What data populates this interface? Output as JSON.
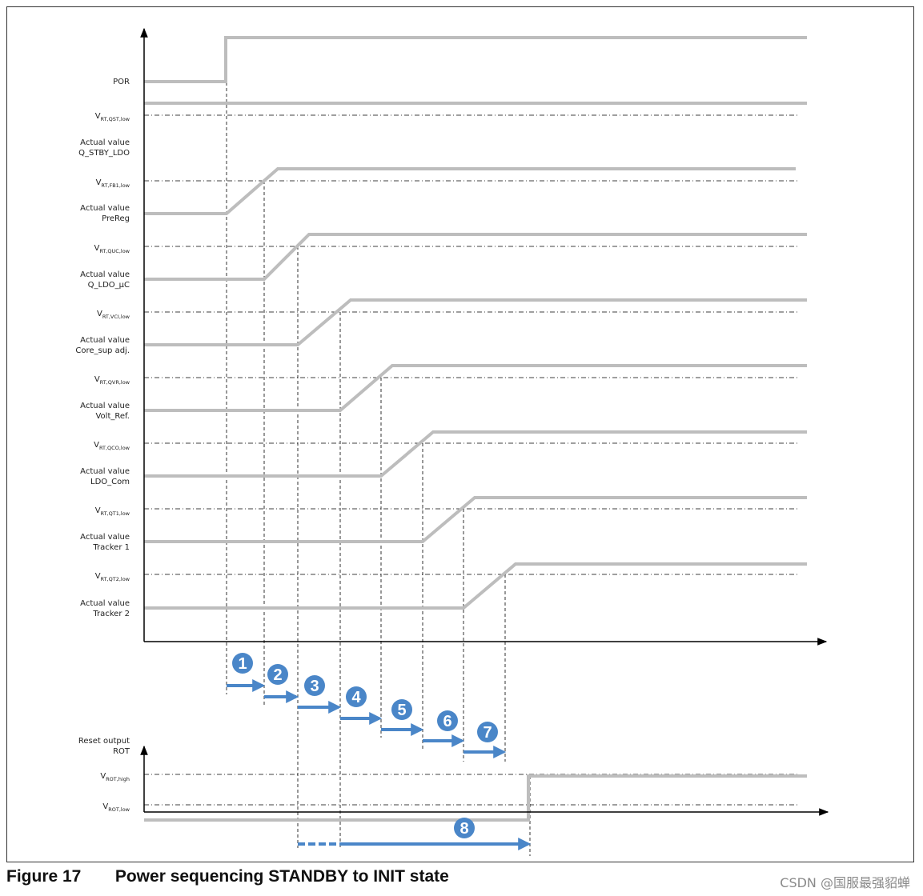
{
  "figure": {
    "number_label": "Figure 17",
    "title": "Power sequencing STANDBY to INIT state"
  },
  "watermark": "CSDN @国服最强貂蝉",
  "signals": [
    {
      "id": "por",
      "lines": [
        "POR"
      ]
    },
    {
      "id": "v-rt-qst",
      "main": "V",
      "sub": "RT,QST,low"
    },
    {
      "id": "q-stby-ldo",
      "lines": [
        "Actual value",
        "Q_STBY_LDO"
      ]
    },
    {
      "id": "v-rt-fb1",
      "main": "V",
      "sub": "RT,FB1,low"
    },
    {
      "id": "prereg",
      "lines": [
        "Actual value",
        "PreReg"
      ]
    },
    {
      "id": "v-rt-quc",
      "main": "V",
      "sub": "RT,QUC,low"
    },
    {
      "id": "q-ldo-uc",
      "lines": [
        "Actual value",
        "Q_LDO_µC"
      ]
    },
    {
      "id": "v-rt-vci",
      "main": "V",
      "sub": "RT,VCI,low"
    },
    {
      "id": "core-sup",
      "lines": [
        "Actual value",
        "Core_sup adj."
      ]
    },
    {
      "id": "v-rt-qvr",
      "main": "V",
      "sub": "RT,QVR,low"
    },
    {
      "id": "volt-ref",
      "lines": [
        "Actual value",
        "Volt_Ref."
      ]
    },
    {
      "id": "v-rt-qco",
      "main": "V",
      "sub": "RT,QCO,low"
    },
    {
      "id": "ldo-com",
      "lines": [
        "Actual value",
        "LDO_Com"
      ]
    },
    {
      "id": "v-rt-qt1",
      "main": "V",
      "sub": "RT,QT1,low"
    },
    {
      "id": "tracker1",
      "lines": [
        "Actual value",
        "Tracker 1"
      ]
    },
    {
      "id": "v-rt-qt2",
      "main": "V",
      "sub": "RT,QT2,low"
    },
    {
      "id": "tracker2",
      "lines": [
        "Actual value",
        "Tracker 2"
      ]
    }
  ],
  "reset": {
    "label": [
      "Reset output",
      "ROT"
    ],
    "v_high": {
      "main": "V",
      "sub": "ROT,high"
    },
    "v_low": {
      "main": "V",
      "sub": "ROT,low"
    }
  },
  "steps": [
    "1",
    "2",
    "3",
    "4",
    "5",
    "6",
    "7",
    "8"
  ],
  "colors": {
    "signal": "#bdbdbd",
    "step": "#4a86c8",
    "axis": "#000000"
  }
}
